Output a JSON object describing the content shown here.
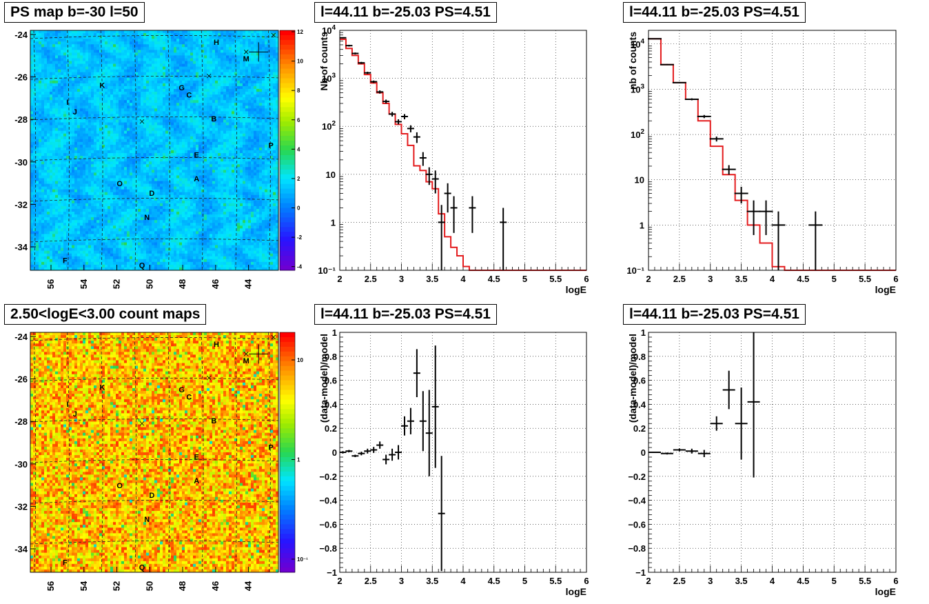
{
  "colors": {
    "frame": "#000000",
    "model_line": "#e31a1c",
    "grid": "#000000"
  },
  "chart_data": [
    {
      "id": "psmap",
      "type": "heatmap",
      "title": "PS map b=-30 l=50",
      "colormap": "root-rainbow",
      "x_ticks": [
        "56",
        "54",
        "52",
        "50",
        "48",
        "46",
        "44"
      ],
      "y_ticks": [
        "-24",
        "-26",
        "-28",
        "-30",
        "-32",
        "-34"
      ],
      "z_ticks": [
        "12",
        "10",
        "8",
        "6",
        "4",
        "2",
        "0",
        "-2",
        "-4"
      ],
      "zlim": [
        -5,
        12
      ],
      "background_level": 0.5,
      "source_labels": [
        "H",
        "M",
        "K",
        "G",
        "C",
        "I",
        "J",
        "B",
        "P",
        "E",
        "A",
        "O",
        "D",
        "N",
        "F",
        "Q"
      ],
      "grid": true
    },
    {
      "id": "spec1",
      "type": "line",
      "title": "l=44.11 b=-25.03 PS=4.51",
      "xlabel": "logE",
      "ylabel": "Nb of counts",
      "xlim": [
        2,
        6
      ],
      "ylim": [
        0.1,
        10000
      ],
      "yscale": "log",
      "x_ticks": [
        "2",
        "2.5",
        "3",
        "3.5",
        "4",
        "4.5",
        "5",
        "5.5",
        "6"
      ],
      "y_ticks": [
        "10",
        "1",
        "10⁻¹"
      ],
      "grid": true,
      "series": [
        {
          "type": "step",
          "edges": [
            2.0,
            2.1,
            2.2,
            2.3,
            2.4,
            2.5,
            2.6,
            2.7,
            2.8,
            2.9,
            3.0,
            3.1,
            3.2,
            3.3,
            3.4,
            3.5,
            3.6,
            3.7,
            3.8,
            3.9,
            4.0,
            4.1,
            4.2,
            4.3,
            4.4,
            4.5,
            4.6,
            4.7,
            4.8,
            4.9,
            5.0,
            5.1,
            5.2,
            5.3,
            5.4,
            5.5,
            5.6,
            5.7,
            5.8,
            5.9,
            6.0
          ],
          "values": [
            6500,
            4200,
            3000,
            2000,
            1200,
            800,
            500,
            300,
            180,
            110,
            70,
            40,
            15,
            12,
            7,
            5,
            1.5,
            0.5,
            0.3,
            0.2,
            0.12,
            0.1,
            0.1,
            0.1,
            0.1,
            0.1,
            0.1,
            0.1,
            0.1,
            0.1,
            0.1,
            0.1,
            0.1,
            0.1,
            0.1,
            0.1,
            0.1,
            0.1,
            0.1,
            0.1
          ]
        },
        {
          "type": "points",
          "x": [
            2.05,
            2.15,
            2.25,
            2.35,
            2.45,
            2.55,
            2.65,
            2.75,
            2.85,
            2.95,
            3.05,
            3.15,
            3.25,
            3.35,
            3.45,
            3.55,
            3.65,
            3.75,
            3.85,
            4.15,
            4.65
          ],
          "y": [
            7000,
            4800,
            3300,
            2100,
            1300,
            850,
            520,
            330,
            180,
            125,
            160,
            90,
            60,
            22,
            10,
            8,
            1,
            4,
            2,
            2,
            1
          ],
          "ylow": [
            6800,
            4600,
            3150,
            2000,
            1230,
            800,
            480,
            300,
            160,
            110,
            140,
            75,
            45,
            15,
            6,
            4,
            0.1,
            1.6,
            0.6,
            0.6,
            0.1
          ],
          "yhigh": [
            7200,
            5000,
            3450,
            2200,
            1370,
            900,
            560,
            360,
            200,
            140,
            180,
            105,
            75,
            29,
            14,
            12,
            2.3,
            6.5,
            3.5,
            3.5,
            2
          ]
        }
      ]
    },
    {
      "id": "spec2",
      "type": "line",
      "title": "l=44.11 b=-25.03 PS=4.51",
      "xlabel": "logE",
      "ylabel": "nb of counts",
      "xlim": [
        2,
        6
      ],
      "ylim": [
        0.1,
        20000
      ],
      "yscale": "log",
      "x_ticks": [
        "2",
        "2.5",
        "3",
        "3.5",
        "4",
        "4.5",
        "5",
        "5.5",
        "6"
      ],
      "y_ticks": [
        "10",
        "1",
        "10⁻¹"
      ],
      "grid": true,
      "series": [
        {
          "type": "step",
          "edges": [
            2.0,
            2.2,
            2.4,
            2.6,
            2.8,
            3.0,
            3.2,
            3.4,
            3.6,
            3.8,
            4.0,
            4.2,
            4.4,
            4.6,
            4.8,
            5.0,
            5.2,
            5.4,
            5.6,
            5.8,
            6.0
          ],
          "values": [
            13000,
            3500,
            1400,
            600,
            200,
            55,
            13,
            3.5,
            1.0,
            0.4,
            0.12,
            0.1,
            0.1,
            0.1,
            0.1,
            0.1,
            0.1,
            0.1,
            0.1,
            0.1
          ]
        },
        {
          "type": "points",
          "x": [
            2.1,
            2.3,
            2.5,
            2.7,
            2.9,
            3.1,
            3.3,
            3.5,
            3.7,
            3.9,
            4.1,
            4.7
          ],
          "y": [
            13000,
            3500,
            1400,
            600,
            250,
            80,
            17,
            5,
            2,
            2,
            1,
            1
          ],
          "ylow": [
            12800,
            3400,
            1350,
            570,
            230,
            70,
            13,
            3,
            0.6,
            0.6,
            0.1,
            0.1
          ],
          "yhigh": [
            13200,
            3600,
            1450,
            630,
            270,
            90,
            21,
            7,
            3.5,
            3.5,
            2,
            2
          ]
        }
      ]
    },
    {
      "id": "countmap",
      "type": "heatmap",
      "title": "2.50<logE<3.00 count maps",
      "colormap": "root-rainbow",
      "x_ticks": [
        "56",
        "54",
        "52",
        "50",
        "48",
        "46",
        "44"
      ],
      "y_ticks": [
        "-24",
        "-26",
        "-28",
        "-30",
        "-32",
        "-34"
      ],
      "z_ticks": [
        "10",
        "1",
        "10⁻¹"
      ],
      "background_level": 0.8,
      "source_labels": [
        "H",
        "M",
        "K",
        "G",
        "C",
        "I",
        "J",
        "B",
        "P",
        "E",
        "A",
        "O",
        "D",
        "N",
        "F",
        "Q"
      ],
      "grid": true
    },
    {
      "id": "res1",
      "type": "scatter",
      "title": "l=44.11 b=-25.03 PS=4.51",
      "xlabel": "logE",
      "ylabel": "(data-model)/model",
      "xlim": [
        2,
        6
      ],
      "ylim": [
        -1,
        1
      ],
      "x_ticks": [
        "2",
        "2.5",
        "3",
        "3.5",
        "4",
        "4.5",
        "5",
        "5.5",
        "6"
      ],
      "y_ticks": [
        "1",
        "0.8",
        "0.6",
        "0.4",
        "0.2",
        "0",
        "−0.2",
        "−0.4",
        "−0.6",
        "−0.8",
        "−1"
      ],
      "grid": true,
      "series": [
        {
          "type": "points",
          "x": [
            2.05,
            2.15,
            2.25,
            2.35,
            2.45,
            2.55,
            2.65,
            2.75,
            2.85,
            2.95,
            3.05,
            3.15,
            3.25,
            3.35,
            3.45,
            3.55,
            3.65
          ],
          "y": [
            0.0,
            0.01,
            -0.03,
            -0.01,
            0.01,
            0.02,
            0.06,
            -0.06,
            -0.02,
            0.0,
            0.22,
            0.26,
            0.66,
            0.26,
            0.16,
            0.38,
            -0.51
          ],
          "yerr": [
            0.01,
            0.01,
            0.01,
            0.015,
            0.02,
            0.025,
            0.03,
            0.04,
            0.05,
            0.06,
            0.08,
            0.11,
            0.2,
            0.25,
            0.36,
            0.51,
            0.48
          ]
        }
      ]
    },
    {
      "id": "res2",
      "type": "scatter",
      "title": "l=44.11 b=-25.03 PS=4.51",
      "xlabel": "logE",
      "ylabel": "(data-model)/model",
      "xlim": [
        2,
        6
      ],
      "ylim": [
        -1,
        1
      ],
      "x_ticks": [
        "2",
        "2.5",
        "3",
        "3.5",
        "4",
        "4.5",
        "5",
        "5.5",
        "6"
      ],
      "y_ticks": [
        "1",
        "0.8",
        "0.6",
        "0.4",
        "0.2",
        "0",
        "−0.2",
        "−0.4",
        "−0.6",
        "−0.8",
        "−1"
      ],
      "grid": true,
      "series": [
        {
          "type": "points",
          "x": [
            2.1,
            2.3,
            2.5,
            2.7,
            2.9,
            3.1,
            3.3,
            3.5,
            3.7
          ],
          "y": [
            0.0,
            -0.01,
            0.02,
            0.01,
            -0.01,
            0.24,
            0.52,
            0.24,
            0.42
          ],
          "yerr": [
            0.004,
            0.008,
            0.012,
            0.02,
            0.03,
            0.06,
            0.16,
            0.3,
            0.63
          ]
        }
      ]
    }
  ]
}
